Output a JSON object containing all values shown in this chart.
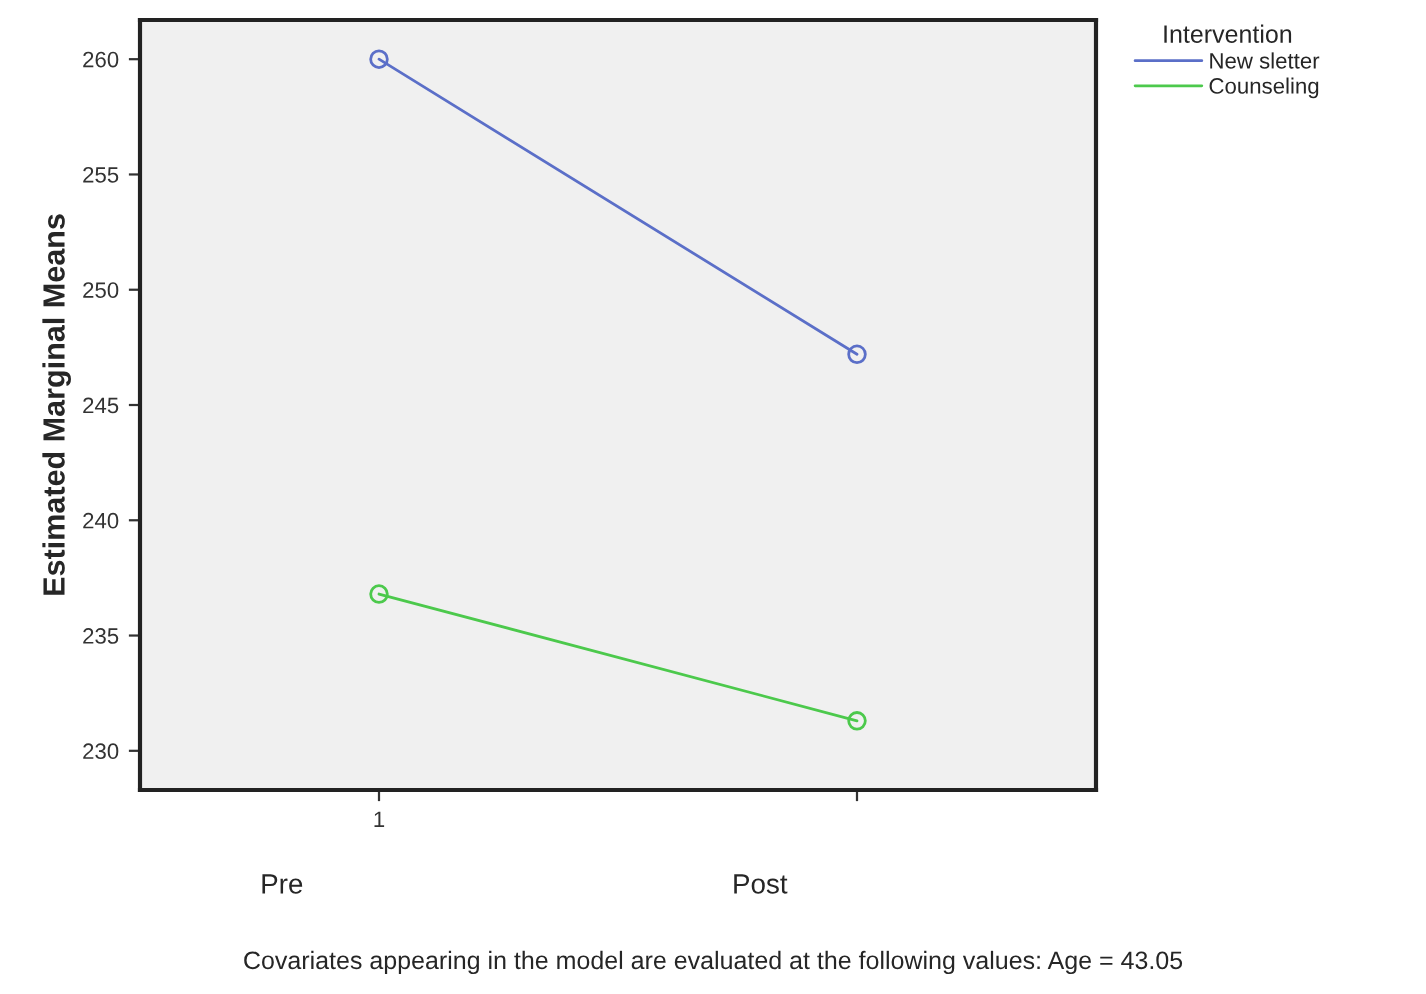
{
  "chart_data": {
    "type": "line",
    "ylabel": "Estimated Marginal Means",
    "legend_title": "Intervention",
    "categories": [
      "1",
      null
    ],
    "ylim": [
      228.3,
      261.7
    ],
    "yticks": [
      230,
      235,
      240,
      245,
      250,
      255,
      260
    ],
    "series": [
      {
        "name": "New sletter",
        "color": "#5b6fc8",
        "values": [
          260.0,
          247.2
        ]
      },
      {
        "name": "Counseling",
        "color": "#4cc94c",
        "values": [
          236.8,
          231.3
        ]
      }
    ],
    "marker": "circle",
    "line_style": "solid",
    "grid": false,
    "legend": "top right",
    "annotations": [
      "Pre",
      "Post",
      "Covariates appearing in the model are evaluated at the following values: Age = 43.05"
    ]
  }
}
